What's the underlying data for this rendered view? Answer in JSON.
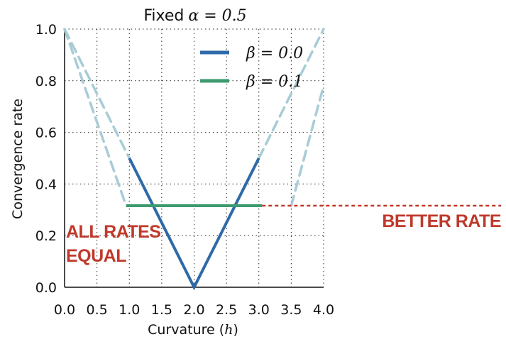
{
  "chart_data": {
    "type": "line",
    "title": "Fixed α = 0.5",
    "title_prefix": "Fixed",
    "title_math": "α = 0.5",
    "xlabel": "Curvature (h)",
    "xlabel_text": "Curvature (",
    "xlabel_math": "h",
    "xlabel_suffix": ")",
    "ylabel": "Convergence rate",
    "xlim": [
      0.0,
      4.0
    ],
    "ylim": [
      0.0,
      1.0
    ],
    "xticks": [
      "0.0",
      "0.5",
      "1.0",
      "1.5",
      "2.0",
      "2.5",
      "3.0",
      "3.5",
      "4.0"
    ],
    "yticks": [
      "0.0",
      "0.2",
      "0.4",
      "0.6",
      "0.8",
      "1.0"
    ],
    "grid": true,
    "legend_position": "top-right",
    "series": [
      {
        "name": "β = 0.0",
        "color": "#2e6aa8",
        "solid": [
          [
            1.0,
            0.5
          ],
          [
            2.0,
            0.0
          ],
          [
            3.0,
            0.5
          ]
        ],
        "dashed": [
          [
            [
              0.0,
              1.0
            ],
            [
              1.0,
              0.5
            ]
          ],
          [
            [
              3.0,
              0.5
            ],
            [
              4.0,
              1.0
            ]
          ]
        ]
      },
      {
        "name": "β = 0.1",
        "color": "#3d9a6e",
        "solid": [
          [
            0.95,
            0.316
          ],
          [
            3.05,
            0.316
          ]
        ],
        "dashed": [
          [
            [
              0.0,
              1.0
            ],
            [
              0.95,
              0.316
            ]
          ],
          [
            [
              3.5,
              0.316
            ],
            [
              4.0,
              0.78
            ]
          ]
        ]
      }
    ],
    "dashed_color": "#a8ccd6",
    "annotations": [
      {
        "text": "ALL RATES",
        "color": "#c0392b"
      },
      {
        "text": "EQUAL",
        "color": "#c0392b"
      },
      {
        "text": "BETTER RATE",
        "color": "#c0392b"
      }
    ],
    "reference_line": {
      "y": 0.316,
      "color": "#c0392b",
      "style": "dashed"
    }
  }
}
